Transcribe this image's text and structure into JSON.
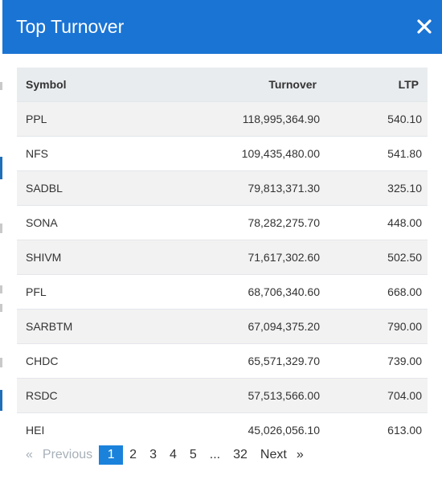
{
  "modal": {
    "title": "Top Turnover",
    "close_icon": "close-icon"
  },
  "table": {
    "columns": [
      "Symbol",
      "Turnover",
      "LTP"
    ],
    "rows": [
      {
        "symbol": "PPL",
        "turnover": "118,995,364.90",
        "ltp": "540.10"
      },
      {
        "symbol": "NFS",
        "turnover": "109,435,480.00",
        "ltp": "541.80"
      },
      {
        "symbol": "SADBL",
        "turnover": "79,813,371.30",
        "ltp": "325.10"
      },
      {
        "symbol": "SONA",
        "turnover": "78,282,275.70",
        "ltp": "448.00"
      },
      {
        "symbol": "SHIVM",
        "turnover": "71,617,302.60",
        "ltp": "502.50"
      },
      {
        "symbol": "PFL",
        "turnover": "68,706,340.60",
        "ltp": "668.00"
      },
      {
        "symbol": "SARBTM",
        "turnover": "67,094,375.20",
        "ltp": "790.00"
      },
      {
        "symbol": "CHDC",
        "turnover": "65,571,329.70",
        "ltp": "739.00"
      },
      {
        "symbol": "RSDC",
        "turnover": "57,513,566.00",
        "ltp": "704.00"
      },
      {
        "symbol": "HEI",
        "turnover": "45,026,056.10",
        "ltp": "613.00"
      }
    ]
  },
  "pagination": {
    "prev_arrow": "«",
    "previous": "Previous",
    "pages": [
      "1",
      "2",
      "3",
      "4",
      "5"
    ],
    "ellipsis": "...",
    "last_page": "32",
    "next": "Next",
    "next_arrow": "»",
    "current": "1"
  },
  "colors": {
    "header": "#1a74d4",
    "active_page": "#1a82db"
  }
}
